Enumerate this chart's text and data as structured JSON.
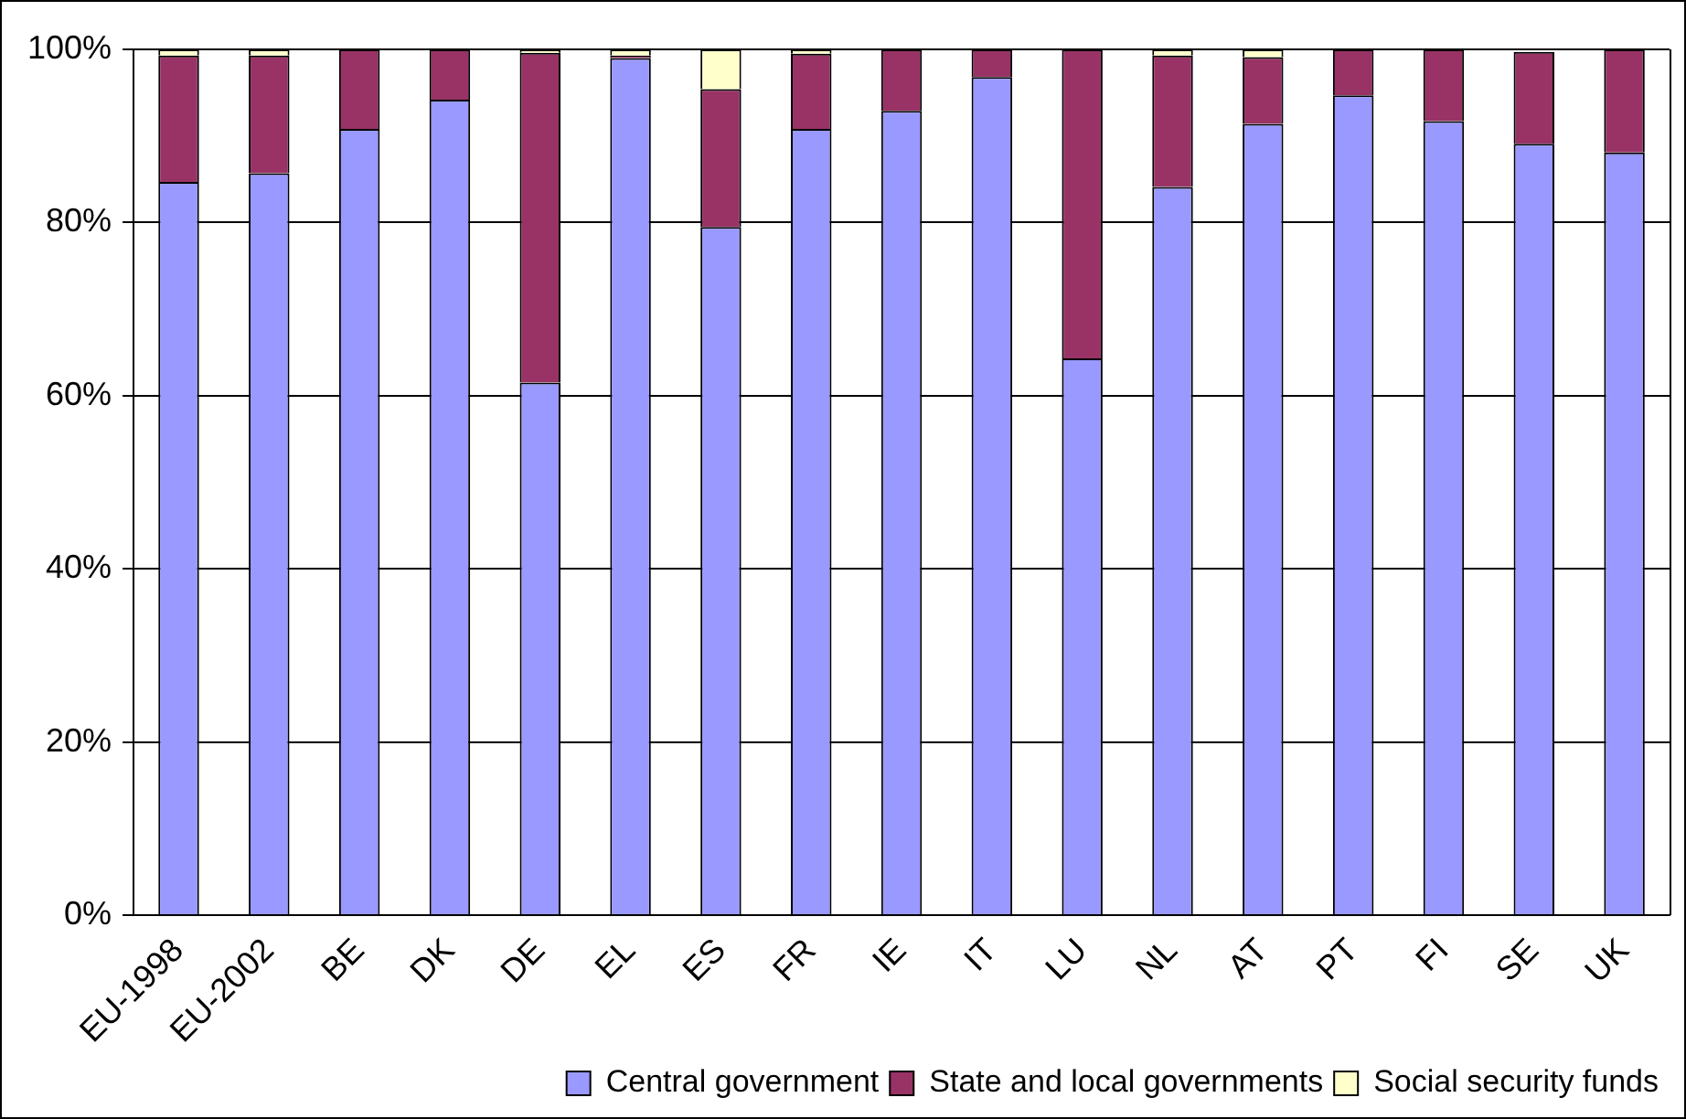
{
  "chart_data": {
    "type": "bar",
    "stacked": true,
    "categories": [
      "EU-1998",
      "EU-2002",
      "BE",
      "DK",
      "DE",
      "EL",
      "ES",
      "FR",
      "IE",
      "IT",
      "LU",
      "NL",
      "AT",
      "PT",
      "FI",
      "SE",
      "UK"
    ],
    "series": [
      {
        "name": "Central government",
        "color": "#9999ff",
        "values": [
          84.7,
          85.7,
          90.8,
          94.2,
          61.5,
          99.0,
          79.5,
          90.8,
          92.9,
          96.8,
          64.3,
          84.1,
          91.4,
          94.7,
          91.7,
          89.1,
          88.1
        ]
      },
      {
        "name": "State and local governments",
        "color": "#993366",
        "values": [
          14.6,
          13.6,
          9.2,
          5.8,
          38.1,
          0.3,
          15.9,
          8.7,
          7.1,
          3.2,
          35.7,
          15.2,
          7.7,
          5.3,
          8.3,
          10.6,
          11.9
        ]
      },
      {
        "name": "Social security funds",
        "color": "#ffffcc",
        "values": [
          0.7,
          0.7,
          0,
          0,
          0.4,
          0.7,
          4.6,
          0.5,
          0,
          0,
          0,
          0.7,
          0.9,
          0,
          0,
          null,
          0
        ]
      }
    ],
    "ylim": [
      0,
      100
    ],
    "yticks": [
      {
        "value": 0,
        "label": "0%"
      },
      {
        "value": 20,
        "label": "20%"
      },
      {
        "value": 40,
        "label": "40%"
      },
      {
        "value": 60,
        "label": "60%"
      },
      {
        "value": 80,
        "label": "80%"
      },
      {
        "value": 100,
        "label": "100%"
      }
    ],
    "grid": "y",
    "legend": "bottom"
  }
}
